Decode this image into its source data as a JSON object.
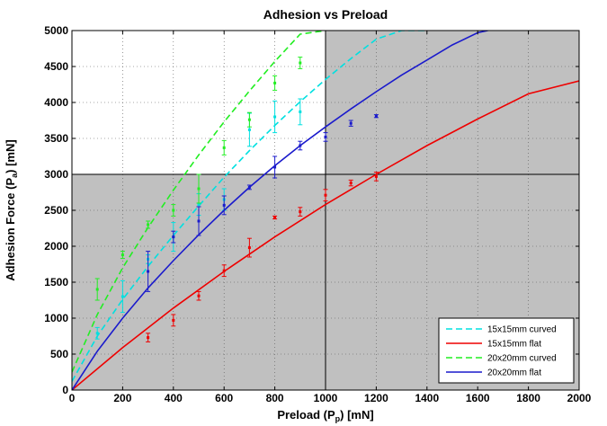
{
  "chart_data": {
    "type": "line",
    "title": "Adhesion vs Preload",
    "xlabel": {
      "main": "Preload (P",
      "sub": "p",
      "tail": ") [mN]"
    },
    "ylabel": {
      "main": "Adhesion Force (P",
      "sub": "a",
      "tail": ") [mN]"
    },
    "xlim": [
      0,
      2000
    ],
    "ylim": [
      0,
      5000
    ],
    "xticks": [
      0,
      200,
      400,
      600,
      800,
      1000,
      1200,
      1400,
      1600,
      1800,
      2000
    ],
    "yticks": [
      0,
      500,
      1000,
      1500,
      2000,
      2500,
      3000,
      3500,
      4000,
      4500,
      5000
    ],
    "grid": true,
    "background_regions": {
      "color": "#c0c0c0",
      "description": "gray shading where preload >= 1000 or adhesion <= 3000",
      "x_threshold": 1000,
      "y_threshold": 3000
    },
    "reference_lines": {
      "x": 1000,
      "y": 3000
    },
    "legend_position": "bottom-right",
    "series": [
      {
        "name": "15x15mm curved",
        "color": "#00e0e0",
        "dash": true,
        "curve": {
          "x": [
            0,
            100,
            200,
            300,
            400,
            500,
            600,
            700,
            800,
            900,
            1000,
            1100,
            1200,
            1300,
            1400
          ],
          "y": [
            120,
            750,
            1260,
            1720,
            2150,
            2560,
            2960,
            3330,
            3680,
            4010,
            4320,
            4610,
            4880,
            5000,
            5000
          ]
        },
        "points": [
          {
            "x": 100,
            "y": 790,
            "err": 80
          },
          {
            "x": 200,
            "y": 1300,
            "err": 220
          },
          {
            "x": 300,
            "y": 1820,
            "err": 60
          },
          {
            "x": 400,
            "y": 2130,
            "err": 200
          },
          {
            "x": 500,
            "y": 2580,
            "err": 150
          },
          {
            "x": 600,
            "y": 2650,
            "err": 150
          },
          {
            "x": 700,
            "y": 3620,
            "err": 230
          },
          {
            "x": 800,
            "y": 3800,
            "err": 220
          },
          {
            "x": 900,
            "y": 3870,
            "err": 180
          }
        ]
      },
      {
        "name": "15x15mm flat",
        "color": "#ee0000",
        "dash": false,
        "curve": {
          "x": [
            0,
            200,
            400,
            600,
            800,
            1000,
            1200,
            1400,
            1600,
            1800,
            2000
          ],
          "y": [
            0,
            590,
            1140,
            1650,
            2130,
            2580,
            3000,
            3400,
            3770,
            4120,
            4300
          ]
        },
        "points": [
          {
            "x": 300,
            "y": 730,
            "err": 60
          },
          {
            "x": 400,
            "y": 970,
            "err": 80
          },
          {
            "x": 500,
            "y": 1310,
            "err": 60
          },
          {
            "x": 600,
            "y": 1660,
            "err": 80
          },
          {
            "x": 700,
            "y": 1980,
            "err": 130
          },
          {
            "x": 800,
            "y": 2400,
            "err": 20
          },
          {
            "x": 900,
            "y": 2480,
            "err": 60
          },
          {
            "x": 1000,
            "y": 2710,
            "err": 80
          },
          {
            "x": 1100,
            "y": 2880,
            "err": 40
          },
          {
            "x": 1200,
            "y": 2970,
            "err": 60
          }
        ]
      },
      {
        "name": "20x20mm curved",
        "color": "#22ee22",
        "dash": true,
        "curve": {
          "x": [
            0,
            100,
            200,
            300,
            400,
            500,
            600,
            700,
            800,
            900,
            1000
          ],
          "y": [
            250,
            1050,
            1700,
            2260,
            2780,
            3270,
            3730,
            4160,
            4570,
            4950,
            5000
          ]
        },
        "points": [
          {
            "x": 100,
            "y": 1400,
            "err": 150
          },
          {
            "x": 200,
            "y": 1880,
            "err": 50
          },
          {
            "x": 300,
            "y": 2300,
            "err": 50
          },
          {
            "x": 400,
            "y": 2500,
            "err": 80
          },
          {
            "x": 500,
            "y": 2800,
            "err": 200
          },
          {
            "x": 600,
            "y": 3370,
            "err": 100
          },
          {
            "x": 700,
            "y": 3760,
            "err": 100
          },
          {
            "x": 800,
            "y": 4270,
            "err": 100
          },
          {
            "x": 900,
            "y": 4550,
            "err": 80
          }
        ]
      },
      {
        "name": "20x20mm flat",
        "color": "#1a1acc",
        "dash": false,
        "curve": {
          "x": [
            0,
            100,
            200,
            300,
            400,
            500,
            600,
            700,
            800,
            900,
            1000,
            1100,
            1200,
            1300,
            1400,
            1500,
            1600,
            1640
          ],
          "y": [
            0,
            540,
            1000,
            1420,
            1800,
            2160,
            2500,
            2820,
            3120,
            3400,
            3660,
            3910,
            4150,
            4380,
            4590,
            4800,
            4970,
            5000
          ]
        },
        "points": [
          {
            "x": 300,
            "y": 1650,
            "err": 280
          },
          {
            "x": 400,
            "y": 2130,
            "err": 80
          },
          {
            "x": 500,
            "y": 2350,
            "err": 200
          },
          {
            "x": 600,
            "y": 2570,
            "err": 130
          },
          {
            "x": 700,
            "y": 2820,
            "err": 30
          },
          {
            "x": 800,
            "y": 3100,
            "err": 150
          },
          {
            "x": 900,
            "y": 3400,
            "err": 60
          },
          {
            "x": 1000,
            "y": 3520,
            "err": 60
          },
          {
            "x": 1100,
            "y": 3710,
            "err": 40
          },
          {
            "x": 1200,
            "y": 3810,
            "err": 20
          }
        ]
      }
    ]
  }
}
